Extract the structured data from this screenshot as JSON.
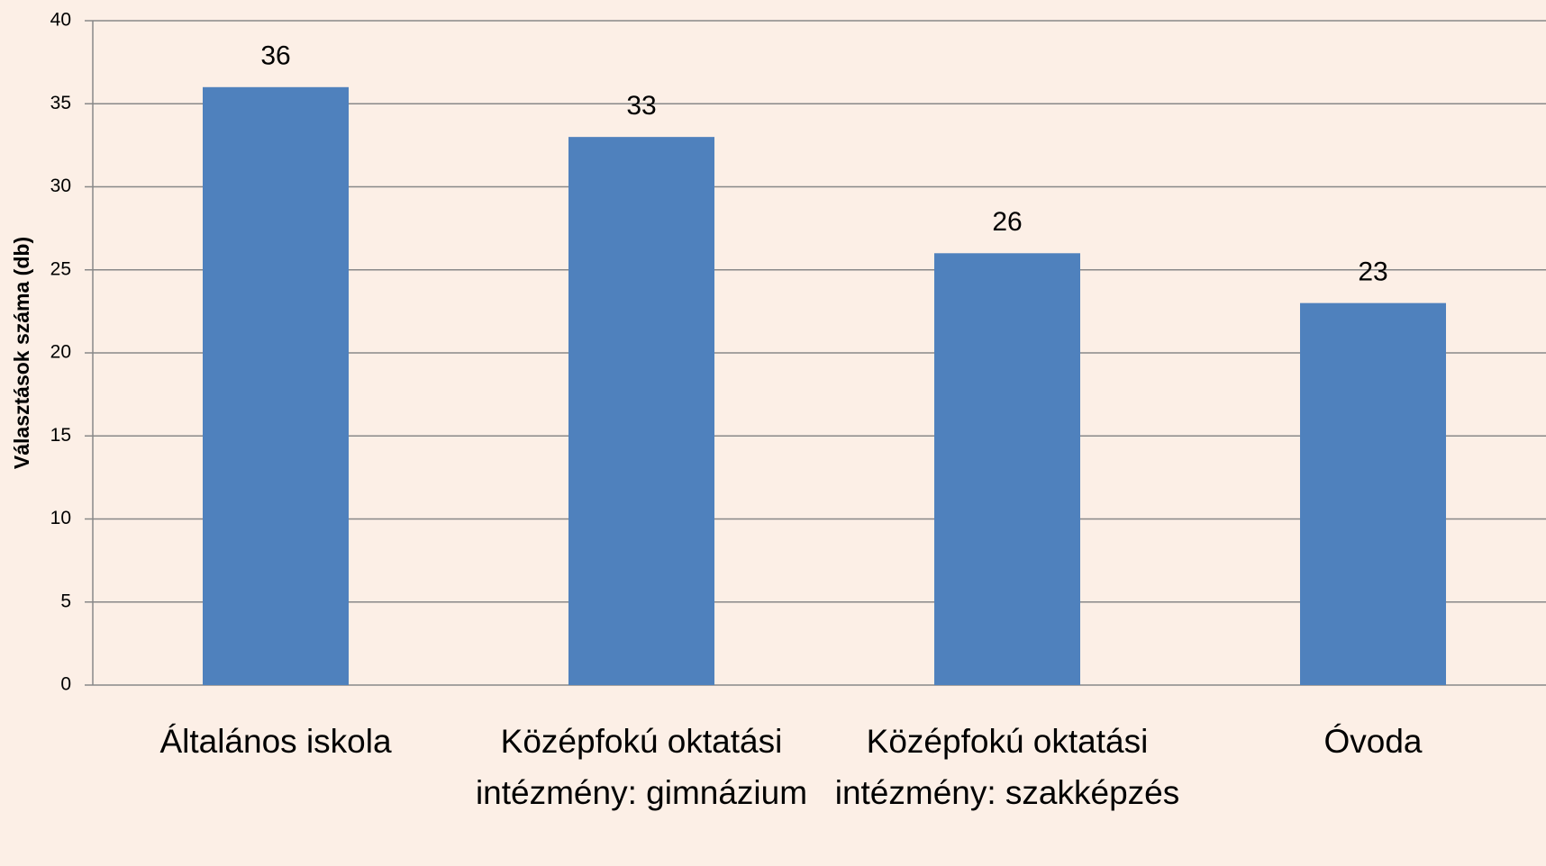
{
  "chart_data": {
    "type": "bar",
    "y_axis_label": "Választások száma (db)",
    "categories": [
      "Általános iskola",
      "Középfokú oktatási intézmény: gimnázium",
      "Középfokú oktatási intézmény: szakképzés",
      "Óvoda"
    ],
    "values": [
      36,
      33,
      26,
      23
    ],
    "color": "#4f81bd",
    "ylim": [
      0,
      40
    ],
    "yticks": [
      0,
      5,
      10,
      15,
      20,
      25,
      30,
      35,
      40
    ],
    "grid": true
  }
}
